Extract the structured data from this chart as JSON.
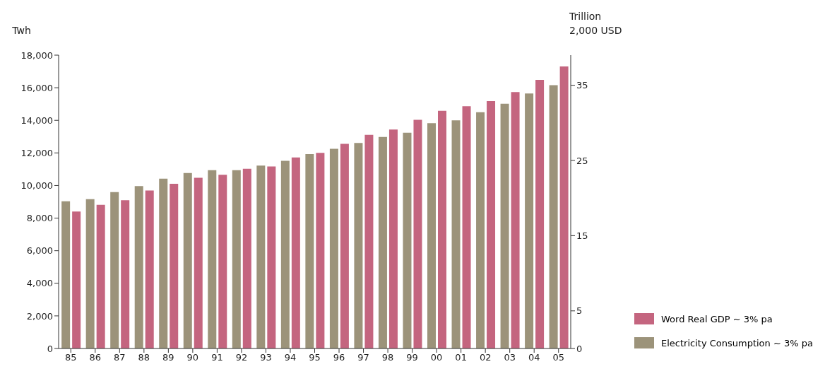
{
  "chart_data": {
    "type": "bar",
    "ylabel": "Twh",
    "y2label": "Trillion\n2,000 USD",
    "categories": [
      "85",
      "86",
      "87",
      "88",
      "89",
      "90",
      "91",
      "92",
      "93",
      "94",
      "95",
      "96",
      "97",
      "98",
      "99",
      "00",
      "01",
      "02",
      "03",
      "04",
      "05"
    ],
    "series": [
      {
        "name": "Electricity Consumption ~ 3% pa",
        "color": "#9c937a",
        "values": [
          9030,
          9160,
          9600,
          9960,
          10420,
          10770,
          10940,
          10940,
          11220,
          11520,
          11930,
          12250,
          12610,
          12980,
          13240,
          13830,
          14000,
          14500,
          15020,
          15650,
          16160
        ]
      },
      {
        "name": "Word Real GDP ~ 3% pa",
        "color": "#c4657f",
        "axis": "y2",
        "values": [
          18.2,
          19.1,
          19.7,
          21.0,
          21.9,
          22.7,
          23.1,
          23.9,
          24.2,
          25.4,
          26.0,
          27.2,
          28.4,
          29.1,
          30.4,
          31.6,
          32.2,
          32.9,
          34.1,
          35.7,
          37.5
        ]
      }
    ],
    "ylim": [
      0,
      18000
    ],
    "yticks": [
      0,
      {
        "value": 2000,
        "label": "2,000"
      },
      {
        "value": 4000,
        "label": "4,000"
      },
      {
        "value": 6000,
        "label": "6,000"
      },
      {
        "value": 8000,
        "label": "8,000"
      },
      {
        "value": 10000,
        "label": "10,000"
      },
      {
        "value": 12000,
        "label": "12,000"
      },
      {
        "value": 14000,
        "label": "14,000"
      },
      {
        "value": 16000,
        "label": "16,000"
      },
      {
        "value": 18000,
        "label": "18,000"
      }
    ],
    "y2lim": [
      0,
      39
    ],
    "y2ticks": [
      0,
      5,
      15,
      25,
      35
    ],
    "grid": false,
    "legend": "bottom right"
  }
}
